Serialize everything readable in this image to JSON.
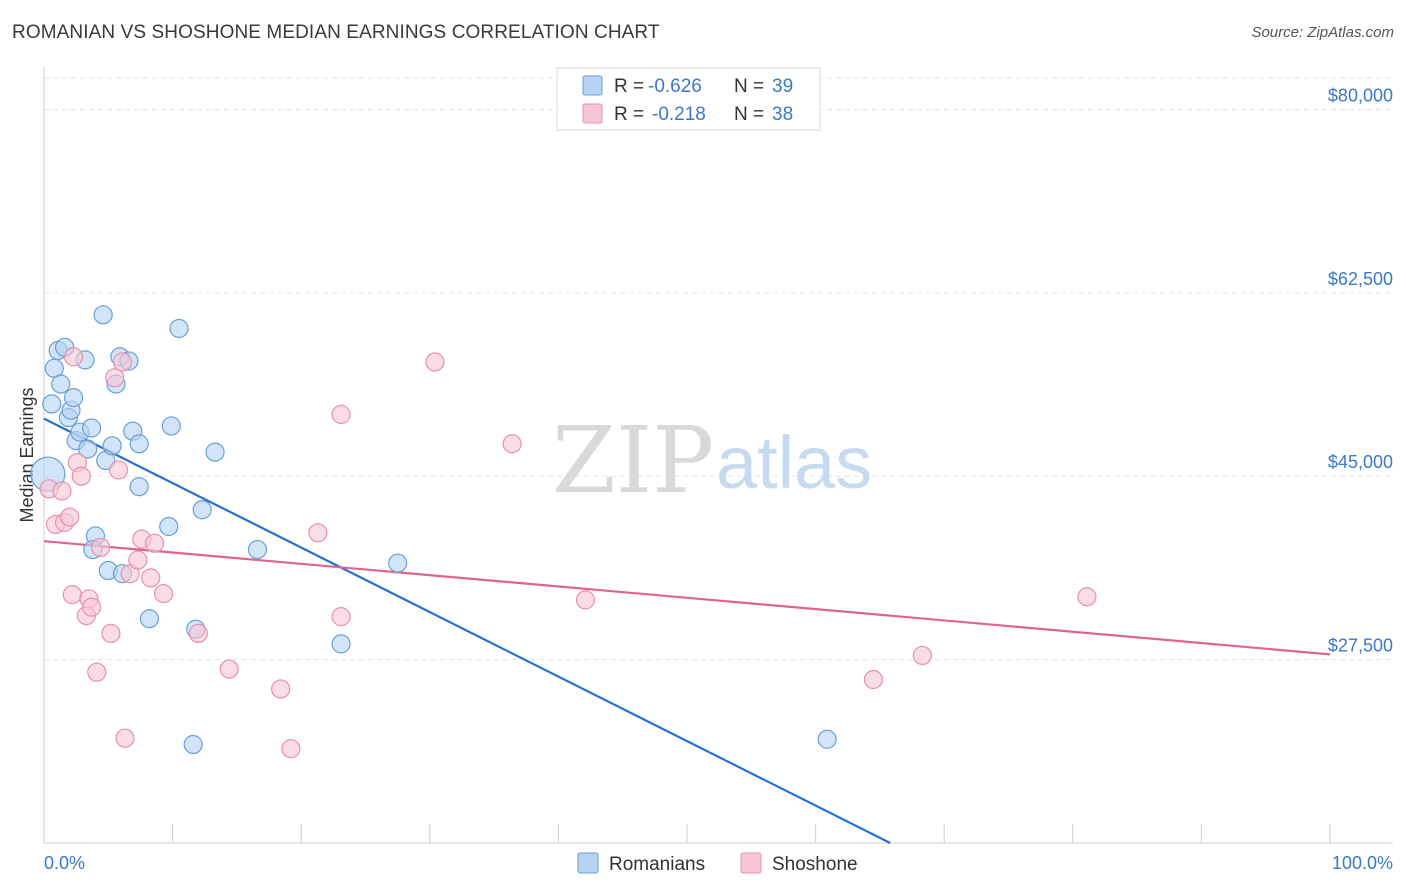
{
  "title": "ROMANIAN VS SHOSHONE MEDIAN EARNINGS CORRELATION CHART",
  "source": "Source: ZipAtlas.com",
  "watermark": {
    "zip": "ZIP",
    "atlas": "atlas"
  },
  "colors": {
    "romanians_fill": "#b7d3f2",
    "romanians_stroke": "#6a9fd8",
    "romanians_line": "#2a70d0",
    "shoshone_fill": "#f7c6d5",
    "shoshone_stroke": "#e890ad",
    "shoshone_line": "#e0648e",
    "tick_text": "#3b78c8",
    "grid": "#e3e3e3"
  },
  "legend": {
    "r_label": "R =",
    "n_label": "N =",
    "rows": [
      {
        "name": "Romanians",
        "r": "-0.626",
        "n": "39"
      },
      {
        "name": "Shoshone",
        "r": "-0.218",
        "n": "38"
      }
    ]
  },
  "chart_data": {
    "type": "scatter",
    "title": "ROMANIAN VS SHOSHONE MEDIAN EARNINGS CORRELATION CHART",
    "xlabel": "",
    "ylabel": "Median Earnings",
    "xlim": [
      0,
      100
    ],
    "ylim": [
      10000,
      83000
    ],
    "x_tick_labels": [
      "0.0%",
      "100.0%"
    ],
    "y_ticks": [
      {
        "value": 27500,
        "label": "$27,500"
      },
      {
        "value": 45000,
        "label": "$45,000"
      },
      {
        "value": 62500,
        "label": "$62,500"
      },
      {
        "value": 80000,
        "label": "$80,000"
      }
    ],
    "series": [
      {
        "name": "Romanians",
        "trend": {
          "x0": 0,
          "y0": 50500,
          "x1": 65.8,
          "y1": 10000
        },
        "points": [
          {
            "x": 0.3,
            "y": 45200
          },
          {
            "x": 0.6,
            "y": 51900
          },
          {
            "x": 0.8,
            "y": 55300
          },
          {
            "x": 1.1,
            "y": 57000
          },
          {
            "x": 1.3,
            "y": 53800
          },
          {
            "x": 1.6,
            "y": 57300
          },
          {
            "x": 1.9,
            "y": 50600
          },
          {
            "x": 2.1,
            "y": 51300
          },
          {
            "x": 2.3,
            "y": 52500
          },
          {
            "x": 2.5,
            "y": 48400
          },
          {
            "x": 2.8,
            "y": 49200
          },
          {
            "x": 3.2,
            "y": 56100
          },
          {
            "x": 3.4,
            "y": 47600
          },
          {
            "x": 3.7,
            "y": 49600
          },
          {
            "x": 4.0,
            "y": 39300
          },
          {
            "x": 3.8,
            "y": 38000
          },
          {
            "x": 4.6,
            "y": 60400
          },
          {
            "x": 4.8,
            "y": 46500
          },
          {
            "x": 5.3,
            "y": 47900
          },
          {
            "x": 5.6,
            "y": 53800
          },
          {
            "x": 5.9,
            "y": 56400
          },
          {
            "x": 6.6,
            "y": 56000
          },
          {
            "x": 6.9,
            "y": 49300
          },
          {
            "x": 7.4,
            "y": 48100
          },
          {
            "x": 5.0,
            "y": 36000
          },
          {
            "x": 6.1,
            "y": 35700
          },
          {
            "x": 7.4,
            "y": 44000
          },
          {
            "x": 8.2,
            "y": 31400
          },
          {
            "x": 9.9,
            "y": 49800
          },
          {
            "x": 10.5,
            "y": 59100
          },
          {
            "x": 11.8,
            "y": 30400
          },
          {
            "x": 12.3,
            "y": 41800
          },
          {
            "x": 11.6,
            "y": 19400
          },
          {
            "x": 13.3,
            "y": 47300
          },
          {
            "x": 9.7,
            "y": 40200
          },
          {
            "x": 16.6,
            "y": 38000
          },
          {
            "x": 23.1,
            "y": 29000
          },
          {
            "x": 27.5,
            "y": 36700
          },
          {
            "x": 60.9,
            "y": 19900
          }
        ]
      },
      {
        "name": "Shoshone",
        "trend": {
          "x0": 0,
          "y0": 38800,
          "x1": 100,
          "y1": 28000
        },
        "points": [
          {
            "x": 0.4,
            "y": 43800
          },
          {
            "x": 0.9,
            "y": 40400
          },
          {
            "x": 1.4,
            "y": 43600
          },
          {
            "x": 1.6,
            "y": 40600
          },
          {
            "x": 2.0,
            "y": 41100
          },
          {
            "x": 2.3,
            "y": 56400
          },
          {
            "x": 2.2,
            "y": 33700
          },
          {
            "x": 2.6,
            "y": 46300
          },
          {
            "x": 2.9,
            "y": 45000
          },
          {
            "x": 3.3,
            "y": 31700
          },
          {
            "x": 3.5,
            "y": 33300
          },
          {
            "x": 3.7,
            "y": 32500
          },
          {
            "x": 4.1,
            "y": 26300
          },
          {
            "x": 4.4,
            "y": 38200
          },
          {
            "x": 5.2,
            "y": 30000
          },
          {
            "x": 5.5,
            "y": 54400
          },
          {
            "x": 5.8,
            "y": 45600
          },
          {
            "x": 6.1,
            "y": 55900
          },
          {
            "x": 6.3,
            "y": 20000
          },
          {
            "x": 6.7,
            "y": 35700
          },
          {
            "x": 7.3,
            "y": 37000
          },
          {
            "x": 7.6,
            "y": 39000
          },
          {
            "x": 8.6,
            "y": 38600
          },
          {
            "x": 8.3,
            "y": 35300
          },
          {
            "x": 9.3,
            "y": 33800
          },
          {
            "x": 12.0,
            "y": 30000
          },
          {
            "x": 14.4,
            "y": 26600
          },
          {
            "x": 18.4,
            "y": 24700
          },
          {
            "x": 19.2,
            "y": 19000
          },
          {
            "x": 21.3,
            "y": 39600
          },
          {
            "x": 23.1,
            "y": 31600
          },
          {
            "x": 23.1,
            "y": 50900
          },
          {
            "x": 30.4,
            "y": 55900
          },
          {
            "x": 36.4,
            "y": 48100
          },
          {
            "x": 42.1,
            "y": 33200
          },
          {
            "x": 64.5,
            "y": 25600
          },
          {
            "x": 68.3,
            "y": 27900
          },
          {
            "x": 81.1,
            "y": 33500
          }
        ]
      }
    ]
  }
}
